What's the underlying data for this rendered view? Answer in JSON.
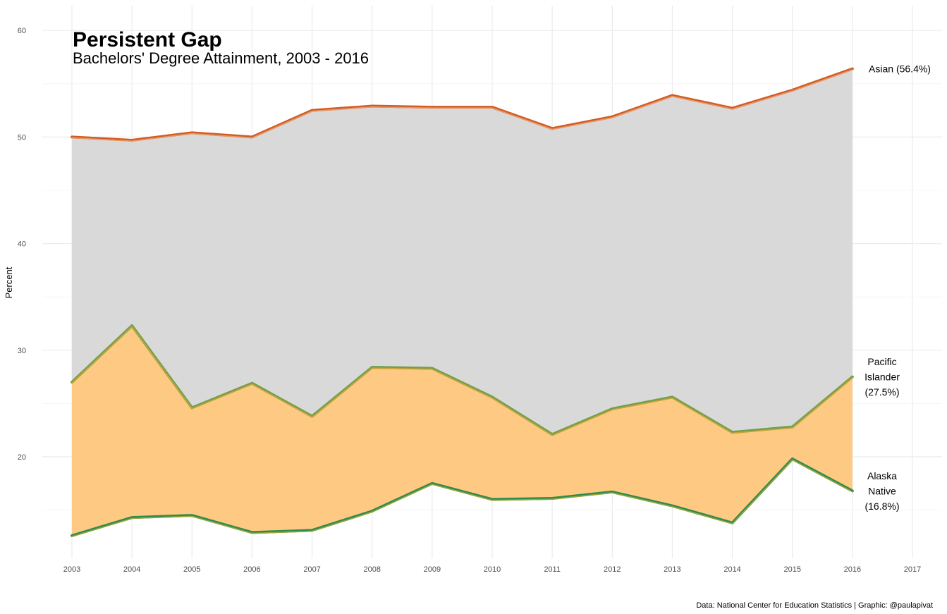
{
  "chart_data": {
    "type": "area",
    "title": "Persistent Gap",
    "subtitle": "Bachelors' Degree Attainment, 2003 - 2016",
    "ylabel": "Percent",
    "xlabel": "",
    "caption": "Data: National Center for Education Statistics | Graphic: @paulapivat",
    "x": [
      2003,
      2004,
      2005,
      2006,
      2007,
      2008,
      2009,
      2010,
      2011,
      2012,
      2013,
      2014,
      2015,
      2016
    ],
    "x_ticks": [
      "2003",
      "2004",
      "2005",
      "2006",
      "2007",
      "2008",
      "2009",
      "2010",
      "2011",
      "2012",
      "2013",
      "2014",
      "2015",
      "2016",
      "2017"
    ],
    "y_ticks": [
      "20",
      "30",
      "40",
      "50",
      "60"
    ],
    "xlim": [
      2003,
      2017
    ],
    "ylim": [
      10.5,
      62.3
    ],
    "grid": true,
    "series": [
      {
        "key": "asian",
        "values": [
          50.0,
          49.7,
          50.4,
          50.0,
          52.5,
          52.9,
          52.8,
          52.8,
          50.8,
          51.9,
          53.9,
          52.7,
          54.4,
          56.4
        ],
        "label_lines": [
          "Asian (56.4%)"
        ],
        "line_color": "#d35b22",
        "line_color_light": "#e59a6a"
      },
      {
        "key": "pacific-islander",
        "values": [
          27.0,
          32.3,
          24.6,
          26.9,
          23.8,
          28.4,
          28.3,
          25.6,
          22.1,
          24.5,
          25.6,
          22.3,
          22.8,
          27.5
        ],
        "label_lines": [
          "Pacific",
          "Islander",
          "(27.5%)"
        ],
        "line_color": "#6fa04a",
        "line_color_light": "#c9a23a"
      },
      {
        "key": "alaska-native",
        "values": [
          12.6,
          14.3,
          14.5,
          12.9,
          13.1,
          14.9,
          17.5,
          16.0,
          16.1,
          16.7,
          15.4,
          13.8,
          19.8,
          16.8
        ],
        "label_lines": [
          "Alaska",
          "Native",
          "(16.8%)"
        ],
        "line_color": "#2e8b4e",
        "line_color_light": "#9aa53a"
      }
    ],
    "fills": {
      "gap_upper": "#d9d9d9",
      "gap_lower": "#fdc983"
    }
  }
}
